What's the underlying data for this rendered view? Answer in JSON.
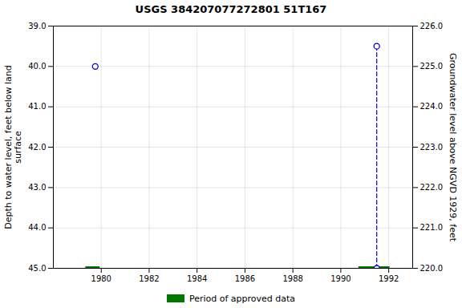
{
  "chart_data": {
    "type": "scatter",
    "title": "USGS 384207077272801 51T167",
    "ylabel": "Depth to water level, feet below land\nsurface",
    "y2label": "Groundwater level above NGVD 1929, feet",
    "xlim": [
      1978.0,
      1993.0
    ],
    "xticks": [
      1980,
      1982,
      1984,
      1986,
      1988,
      1990,
      1992
    ],
    "ylim": [
      45.0,
      39.0
    ],
    "yticks": [
      {
        "value": 39.0,
        "label": "39.0"
      },
      {
        "value": 40.0,
        "label": "40.0"
      },
      {
        "value": 41.0,
        "label": "41.0"
      },
      {
        "value": 42.0,
        "label": "42.0"
      },
      {
        "value": 43.0,
        "label": "43.0"
      },
      {
        "value": 44.0,
        "label": "44.0"
      },
      {
        "value": 45.0,
        "label": "45.0"
      }
    ],
    "y2lim": [
      220.0,
      226.0
    ],
    "y2ticks": [
      {
        "value": 226.0,
        "label": "226.0"
      },
      {
        "value": 225.0,
        "label": "225.0"
      },
      {
        "value": 224.0,
        "label": "224.0"
      },
      {
        "value": 223.0,
        "label": "223.0"
      },
      {
        "value": 222.0,
        "label": "222.0"
      },
      {
        "value": 221.0,
        "label": "221.0"
      },
      {
        "value": 220.0,
        "label": "220.0"
      }
    ],
    "grid": true,
    "legend": "bottom",
    "series": [
      {
        "type": "scatter",
        "marker": "circle",
        "color": "#0000cc",
        "x": [
          1979.75,
          1991.5,
          1991.5
        ],
        "values": [
          40.0,
          39.5,
          45.0
        ]
      },
      {
        "type": "line",
        "line_style": "dashed",
        "color": "#0000cc",
        "x": [
          1991.5,
          1991.5
        ],
        "values": [
          39.5,
          45.0
        ]
      },
      {
        "name": "Period of approved data",
        "type": "bar",
        "orientation": "horizontal",
        "color": "#007700",
        "x_start": [
          1979.35,
          1990.75
        ],
        "x_end": [
          1979.95,
          1992.05
        ],
        "values": [
          45.0,
          45.0
        ]
      }
    ]
  }
}
